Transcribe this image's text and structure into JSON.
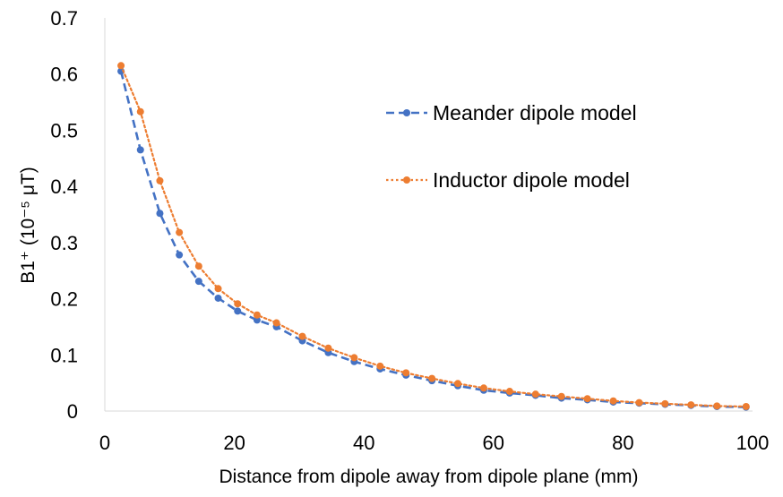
{
  "chart_data": {
    "type": "line",
    "xlabel": "Distance from dipole away from dipole plane (mm)",
    "ylabel": "B1⁺ (10⁻⁵ μT)",
    "xlim": [
      0,
      100
    ],
    "ylim": [
      0,
      0.7
    ],
    "x_ticks": [
      "0",
      "20",
      "40",
      "60",
      "80",
      "100"
    ],
    "y_ticks": [
      "0",
      "0.1",
      "0.2",
      "0.3",
      "0.4",
      "0.5",
      "0.6",
      "0.7"
    ],
    "grid": false,
    "legend_position": "right",
    "series": [
      {
        "name": "Meander dipole model",
        "color": "#4472C4",
        "line_style": "dashed",
        "marker": "circle",
        "x": [
          2.5,
          5.5,
          8.5,
          11.5,
          14.5,
          17.5,
          20.5,
          23.5,
          26.5,
          30.5,
          34.5,
          38.5,
          42.5,
          46.5,
          50.5,
          54.5,
          58.5,
          62.5,
          66.5,
          70.5,
          74.5,
          78.5,
          82.5,
          86.5,
          90.5,
          94.5,
          99
        ],
        "values": [
          0.605,
          0.465,
          0.352,
          0.278,
          0.231,
          0.201,
          0.178,
          0.162,
          0.15,
          0.125,
          0.104,
          0.088,
          0.075,
          0.064,
          0.054,
          0.045,
          0.037,
          0.032,
          0.028,
          0.023,
          0.02,
          0.016,
          0.014,
          0.012,
          0.01,
          0.008,
          0.007
        ]
      },
      {
        "name": "Inductor dipole model",
        "color": "#ED7D31",
        "line_style": "dotted",
        "marker": "circle",
        "x": [
          2.5,
          5.5,
          8.5,
          11.5,
          14.5,
          17.5,
          20.5,
          23.5,
          26.5,
          30.5,
          34.5,
          38.5,
          42.5,
          46.5,
          50.5,
          54.5,
          58.5,
          62.5,
          66.5,
          70.5,
          74.5,
          78.5,
          82.5,
          86.5,
          90.5,
          94.5,
          99
        ],
        "values": [
          0.615,
          0.533,
          0.41,
          0.318,
          0.258,
          0.218,
          0.191,
          0.171,
          0.157,
          0.133,
          0.112,
          0.095,
          0.08,
          0.068,
          0.058,
          0.049,
          0.041,
          0.035,
          0.03,
          0.026,
          0.022,
          0.018,
          0.015,
          0.013,
          0.011,
          0.009,
          0.008
        ]
      }
    ]
  }
}
